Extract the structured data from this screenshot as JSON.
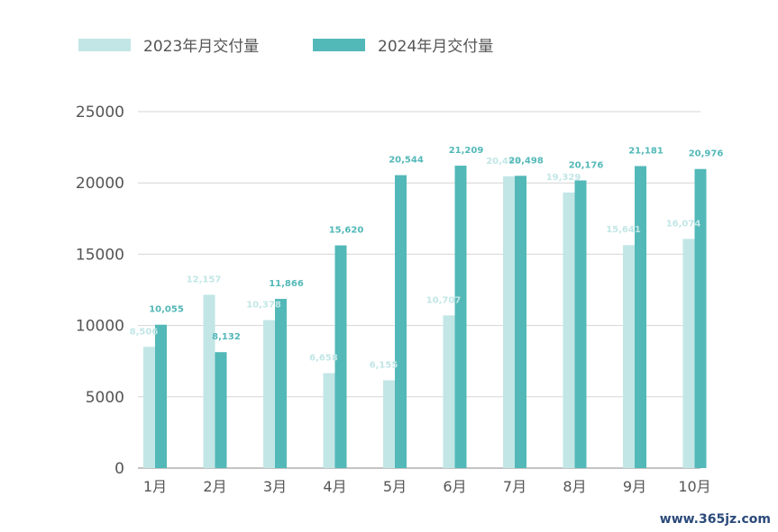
{
  "chart_data": {
    "type": "bar",
    "categories": [
      "1月",
      "2月",
      "3月",
      "4月",
      "5月",
      "6月",
      "7月",
      "8月",
      "9月",
      "10月"
    ],
    "series": [
      {
        "name": "2023年月交付量",
        "color": "#c2e6e6",
        "values": [
          8506,
          12157,
          10378,
          6658,
          6155,
          10707,
          20463,
          19329,
          15641,
          16074
        ],
        "labels": [
          "8,506",
          "12,157",
          "10,378",
          "6,658",
          "6,155",
          "10,707",
          "20,463",
          "19,329",
          "15,641",
          "16,074"
        ]
      },
      {
        "name": "2024年月交付量",
        "color": "#53b8b8",
        "values": [
          10055,
          8132,
          11866,
          15620,
          20544,
          21209,
          20498,
          20176,
          21181,
          20976
        ],
        "labels": [
          "10,055",
          "8,132",
          "11,866",
          "15,620",
          "20,544",
          "21,209",
          "20,498",
          "20,176",
          "21,181",
          "20,976"
        ]
      }
    ],
    "yticks": [
      "0",
      "5000",
      "10000",
      "15000",
      "20000",
      "25000"
    ],
    "ylim": [
      0,
      25000
    ],
    "grid": true,
    "legend": "top-left"
  },
  "watermark": "www.365jz.com"
}
